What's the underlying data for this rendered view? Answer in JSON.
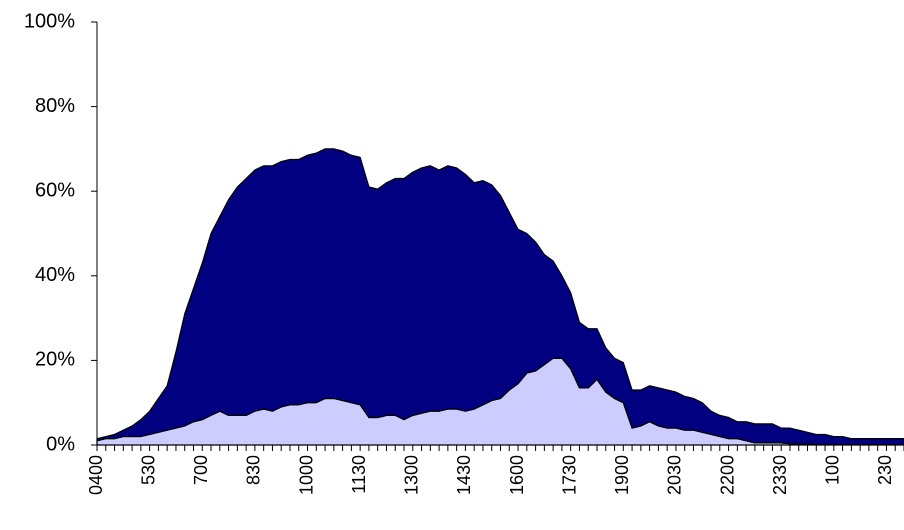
{
  "chart_data": {
    "type": "stacked-area",
    "categories": [
      "0400",
      null,
      null,
      null,
      null,
      null,
      "530",
      null,
      null,
      null,
      null,
      null,
      "700",
      null,
      null,
      null,
      null,
      null,
      "830",
      null,
      null,
      null,
      null,
      null,
      "1000",
      null,
      null,
      null,
      null,
      null,
      "1130",
      null,
      null,
      null,
      null,
      null,
      "1300",
      null,
      null,
      null,
      null,
      null,
      "1430",
      null,
      null,
      null,
      null,
      null,
      "1600",
      null,
      null,
      null,
      null,
      null,
      "1730",
      null,
      null,
      null,
      null,
      null,
      "1900",
      null,
      null,
      null,
      null,
      null,
      "2030",
      null,
      null,
      null,
      null,
      null,
      "2200",
      null,
      null,
      null,
      null,
      null,
      "2330",
      null,
      null,
      null,
      null,
      null,
      "100",
      null,
      null,
      null,
      null,
      null,
      "230",
      null,
      null
    ],
    "series": [
      {
        "color": "#ccccff",
        "values": [
          1,
          1.5,
          1.5,
          2,
          2,
          2,
          2.5,
          3,
          3.5,
          4,
          4.5,
          5.5,
          6,
          7,
          8,
          7,
          7,
          7,
          8,
          8.5,
          8,
          9,
          9.5,
          9.5,
          10,
          10,
          11,
          11,
          10.5,
          10,
          9.5,
          6.5,
          6.5,
          7,
          7,
          6,
          7,
          7.5,
          8,
          8,
          8.5,
          8.5,
          8,
          8.5,
          9.5,
          10.5,
          11,
          13,
          14.5,
          17,
          17.5,
          19,
          20.5,
          20.5,
          18,
          13.5,
          13.5,
          15.5,
          12.5,
          11,
          10,
          4,
          4.5,
          5.5,
          4.5,
          4,
          4,
          3.5,
          3.5,
          3,
          2.5,
          2,
          1.5,
          1.5,
          1,
          0.5,
          0.5,
          0.5,
          0.5,
          0.3,
          0.2,
          0.2,
          0.1,
          0.1,
          0.1,
          0.1,
          0.1,
          0.1,
          0.1,
          0.1,
          0.1,
          0.1,
          0.1
        ]
      },
      {
        "color": "#000080",
        "values": [
          0.5,
          0.5,
          1,
          1.5,
          2.5,
          4,
          5.5,
          8,
          10.5,
          18,
          26.5,
          31.5,
          37,
          43,
          46,
          51,
          54,
          56,
          57,
          57.5,
          58,
          58,
          58,
          58,
          58.5,
          59,
          59,
          59,
          59,
          58.5,
          58.5,
          54.5,
          54,
          55,
          56,
          57,
          57.5,
          58,
          58,
          57,
          57.5,
          57,
          56,
          53.5,
          53,
          51,
          48,
          42,
          36.5,
          33,
          30.5,
          26,
          23,
          19.5,
          18,
          15.5,
          14,
          12,
          10.5,
          9.5,
          9.5,
          9,
          8.5,
          8.5,
          9,
          9,
          8.5,
          8,
          7.5,
          7,
          5.5,
          5,
          5,
          4,
          4.5,
          4.5,
          4.5,
          4.5,
          3.5,
          3.7,
          3.3,
          2.8,
          2.4,
          2.4,
          1.9,
          1.9,
          1.4,
          1.4,
          1.4,
          1.4,
          1.4,
          1.4,
          1.4
        ]
      }
    ],
    "ylim": [
      0,
      100
    ],
    "yticks": [
      {
        "value": 0,
        "label": "0%"
      },
      {
        "value": 20,
        "label": "20%"
      },
      {
        "value": 40,
        "label": "40%"
      },
      {
        "value": 60,
        "label": "60%"
      },
      {
        "value": 80,
        "label": "80%"
      },
      {
        "value": 100,
        "label": "100%"
      }
    ]
  }
}
